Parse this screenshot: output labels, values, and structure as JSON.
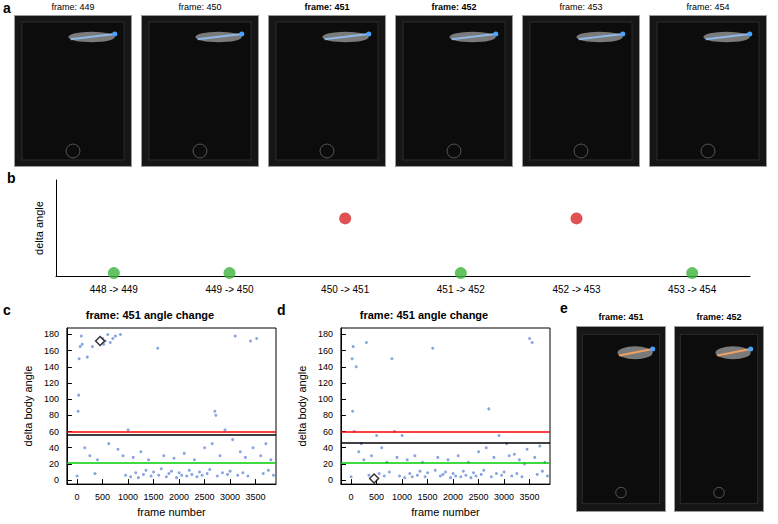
{
  "chart_data": [
    {
      "type": "scatter",
      "annotations": [
        "b"
      ],
      "y_label": "delta angle",
      "categories": [
        "448 -> 449",
        "449 -> 450",
        "450 -> 451",
        "451 -> 452",
        "452 -> 453",
        "453 -> 454"
      ],
      "values": [
        0.03,
        0.03,
        0.6,
        0.03,
        0.6,
        0.03
      ],
      "colors": [
        "#3cb43c",
        "#3cb43c",
        "#d62728",
        "#3cb43c",
        "#d62728",
        "#3cb43c"
      ],
      "marker": "circle",
      "ylim": [
        0,
        1
      ],
      "tick_labels": "x",
      "grid": false
    },
    {
      "type": "scatter",
      "annotations": [
        "c"
      ],
      "title": "frame: 451 angle change",
      "x_label": "frame number",
      "y_label": "delta body angle",
      "x": [
        0,
        20,
        30,
        40,
        60,
        80,
        100,
        150,
        200,
        250,
        300,
        350,
        400,
        500,
        520,
        550,
        600,
        620,
        650,
        700,
        750,
        800,
        850,
        900,
        950,
        1000,
        1050,
        1100,
        1150,
        1200,
        1250,
        1300,
        1350,
        1400,
        1450,
        1500,
        1580,
        1600,
        1650,
        1700,
        1750,
        1800,
        1850,
        1900,
        1950,
        2000,
        2050,
        2100,
        2150,
        2200,
        2250,
        2300,
        2350,
        2400,
        2450,
        2500,
        2550,
        2600,
        2650,
        2700,
        2720,
        2750,
        2800,
        2850,
        2900,
        2950,
        3000,
        3050,
        3100,
        3150,
        3200,
        3250,
        3300,
        3350,
        3400,
        3450,
        3520,
        3600,
        3650,
        3700,
        3750,
        3800,
        3850
      ],
      "values": [
        5,
        85,
        105,
        150,
        165,
        178,
        168,
        40,
        152,
        30,
        165,
        8,
        25,
        175,
        168,
        172,
        180,
        45,
        170,
        175,
        178,
        38,
        180,
        30,
        6,
        62,
        4,
        28,
        9,
        3,
        35,
        7,
        12,
        25,
        5,
        10,
        163,
        6,
        14,
        30,
        4,
        8,
        11,
        27,
        3,
        9,
        6,
        33,
        5,
        12,
        7,
        25,
        4,
        10,
        6,
        40,
        8,
        13,
        45,
        85,
        80,
        5,
        30,
        9,
        62,
        7,
        11,
        50,
        178,
        6,
        35,
        9,
        28,
        5,
        172,
        40,
        175,
        30,
        8,
        45,
        12,
        25,
        6
      ],
      "color": "#6b8fd8",
      "marker": "circle",
      "highlight": {
        "x": 451,
        "y": 172,
        "marker": "diamond",
        "color": "#000000"
      },
      "thresholds": [
        {
          "value": 60,
          "color": "#ff0000"
        },
        {
          "value": 56,
          "color": "#000000"
        },
        {
          "value": 21,
          "color": "#00cc00"
        }
      ],
      "xlim": [
        -200,
        3900
      ],
      "xticks": [
        0,
        500,
        1000,
        1500,
        2000,
        2500,
        3000,
        3500
      ],
      "ylim": [
        -5,
        188
      ],
      "yticks": [
        0,
        20,
        40,
        60,
        80,
        100,
        120,
        140,
        160,
        180
      ],
      "grid": false
    },
    {
      "type": "scatter",
      "annotations": [
        "d"
      ],
      "title": "frame: 451 angle change",
      "x_label": "frame number",
      "y_label": "delta body angle",
      "x": [
        0,
        20,
        30,
        40,
        60,
        100,
        150,
        200,
        250,
        300,
        350,
        400,
        500,
        550,
        600,
        650,
        700,
        750,
        800,
        850,
        900,
        950,
        1000,
        1050,
        1100,
        1150,
        1200,
        1250,
        1300,
        1350,
        1400,
        1450,
        1500,
        1600,
        1650,
        1700,
        1750,
        1800,
        1850,
        1900,
        1950,
        2000,
        2050,
        2100,
        2150,
        2200,
        2250,
        2300,
        2350,
        2400,
        2450,
        2500,
        2550,
        2600,
        2650,
        2700,
        2750,
        2800,
        2850,
        2900,
        2950,
        3000,
        3050,
        3100,
        3150,
        3200,
        3250,
        3300,
        3350,
        3400,
        3450,
        3500,
        3550,
        3600,
        3650,
        3700,
        3750,
        3800,
        3850
      ],
      "values": [
        4,
        150,
        85,
        165,
        60,
        140,
        35,
        45,
        25,
        170,
        6,
        30,
        55,
        8,
        40,
        5,
        22,
        10,
        150,
        60,
        28,
        5,
        55,
        3,
        25,
        8,
        4,
        30,
        6,
        11,
        22,
        4,
        9,
        163,
        12,
        28,
        5,
        7,
        10,
        25,
        3,
        8,
        5,
        30,
        4,
        11,
        6,
        22,
        3,
        9,
        5,
        35,
        7,
        12,
        40,
        88,
        4,
        28,
        8,
        55,
        6,
        10,
        45,
        30,
        5,
        32,
        8,
        25,
        4,
        20,
        38,
        175,
        170,
        28,
        7,
        42,
        11,
        22,
        5
      ],
      "color": "#6b8fd8",
      "marker": "circle",
      "highlight": {
        "x": 451,
        "y": 2,
        "marker": "diamond",
        "color": "#000000"
      },
      "thresholds": [
        {
          "value": 60,
          "color": "#ff0000"
        },
        {
          "value": 46,
          "color": "#000000"
        },
        {
          "value": 21,
          "color": "#00cc00"
        }
      ],
      "xlim": [
        -200,
        3900
      ],
      "xticks": [
        0,
        500,
        1000,
        1500,
        2000,
        2500,
        3000,
        3500
      ],
      "ylim": [
        -5,
        188
      ],
      "yticks": [
        0,
        20,
        40,
        60,
        80,
        100,
        120,
        140,
        160,
        180
      ],
      "grid": false
    }
  ],
  "image_panels": [
    {
      "label": "a",
      "frames": [
        {
          "title": "frame: 449",
          "bold": false
        },
        {
          "title": "frame: 450",
          "bold": false
        },
        {
          "title": "frame: 451",
          "bold": true
        },
        {
          "title": "frame: 452",
          "bold": true
        },
        {
          "title": "frame: 453",
          "bold": false
        },
        {
          "title": "frame: 454",
          "bold": false
        }
      ]
    },
    {
      "label": "e",
      "frames": [
        {
          "title": "frame: 451",
          "bold": true
        },
        {
          "title": "frame: 452",
          "bold": true
        }
      ]
    }
  ]
}
